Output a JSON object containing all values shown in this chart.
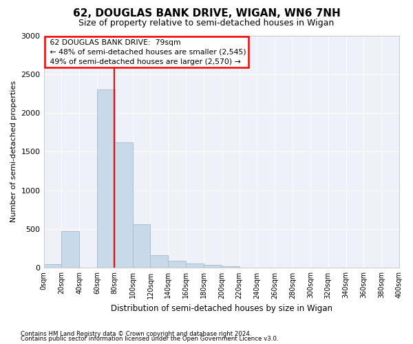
{
  "title": "62, DOUGLAS BANK DRIVE, WIGAN, WN6 7NH",
  "subtitle": "Size of property relative to semi-detached houses in Wigan",
  "xlabel": "Distribution of semi-detached houses by size in Wigan",
  "ylabel": "Number of semi-detached properties",
  "footnote1": "Contains HM Land Registry data © Crown copyright and database right 2024.",
  "footnote2": "Contains public sector information licensed under the Open Government Licence v3.0.",
  "bar_color": "#c8d9ea",
  "bar_edge_color": "#aabfce",
  "background_color": "#eef2f8",
  "grid_color": "#ffffff",
  "red_line_x": 79,
  "annotation_title": "62 DOUGLAS BANK DRIVE:  79sqm",
  "annotation_line1": "← 48% of semi-detached houses are smaller (2,545)",
  "annotation_line2": "49% of semi-detached houses are larger (2,570) →",
  "bin_edges": [
    0,
    20,
    40,
    60,
    80,
    100,
    120,
    140,
    160,
    180,
    200,
    220,
    240,
    260,
    280,
    300,
    320,
    340,
    360,
    380,
    400
  ],
  "bin_counts": [
    50,
    470,
    0,
    2300,
    1620,
    560,
    160,
    90,
    60,
    40,
    20,
    8,
    5,
    3,
    2,
    1,
    1,
    0,
    0,
    0
  ],
  "ylim": [
    0,
    3000
  ],
  "yticks": [
    0,
    500,
    1000,
    1500,
    2000,
    2500,
    3000
  ]
}
